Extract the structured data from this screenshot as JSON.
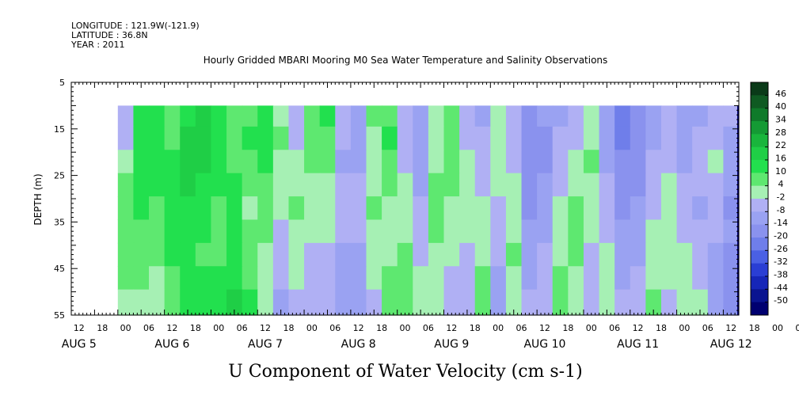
{
  "header": {
    "longitude": "LONGITUDE : 121.9W(-121.9)",
    "latitude": "LATITUDE : 36.8N",
    "year": "YEAR : 2011",
    "title": "Hourly Gridded MBARI Mooring M0 Sea Water Temperature and Salinity Observations"
  },
  "chart_data": {
    "type": "heatmap",
    "title": "Hourly Gridded MBARI Mooring M0 Sea Water Temperature and Salinity Observations",
    "xlabel": "U Component of Water Velocity (cm s-1)",
    "ylabel": "DEPTH (m)",
    "ylim": [
      55,
      5
    ],
    "y_ticks": [
      "5",
      "15",
      "25",
      "35",
      "45",
      "55"
    ],
    "x_hour_ticks": [
      "12",
      "18",
      "00",
      "06",
      "12",
      "18",
      "00",
      "06",
      "12",
      "18",
      "00",
      "06",
      "12",
      "18",
      "00",
      "06",
      "12",
      "18",
      "00",
      "06",
      "12",
      "18",
      "00",
      "06",
      "12",
      "18",
      "00",
      "06",
      "12",
      "18",
      "00",
      "06"
    ],
    "x_day_labels": [
      "AUG 5",
      "AUG 6",
      "AUG 7",
      "AUG 8",
      "AUG 9",
      "AUG 10",
      "AUG 11",
      "AUG 12"
    ],
    "x_range_hours": [
      0,
      172
    ],
    "data_depth_range": [
      10,
      55
    ],
    "colorbar": {
      "levels": [
        "46",
        "40",
        "34",
        "28",
        "22",
        "16",
        "10",
        "4",
        "-2",
        "-8",
        "-14",
        "-20",
        "-26",
        "-32",
        "-38",
        "-44",
        "-50"
      ]
    },
    "column_times_hours": [
      14,
      18,
      22,
      26,
      30,
      34,
      38,
      42,
      46,
      50,
      54,
      58,
      62,
      66,
      70,
      74,
      78,
      82,
      86,
      90,
      94,
      98,
      102,
      106,
      110,
      114,
      118,
      122,
      126,
      130,
      134,
      138,
      142,
      146,
      150,
      154,
      158,
      162,
      166,
      170
    ],
    "row_depths_m": [
      12,
      17,
      22,
      27,
      32,
      37,
      42,
      47,
      52
    ],
    "values_cm_s": [
      [
        -3,
        12,
        15,
        8,
        16,
        18,
        14,
        6,
        10,
        15,
        4,
        -4,
        8,
        12,
        -5,
        -8,
        6,
        10,
        -6,
        -10,
        4,
        8,
        -4,
        -8,
        2,
        -6,
        -14,
        -12,
        -8,
        -4,
        2,
        -10,
        -20,
        -16,
        -10,
        -6,
        -12,
        -8,
        -4,
        -6
      ],
      [
        -2,
        14,
        16,
        10,
        18,
        20,
        16,
        8,
        12,
        14,
        6,
        -2,
        10,
        8,
        -6,
        -10,
        4,
        12,
        -4,
        -12,
        2,
        10,
        -2,
        -6,
        4,
        -4,
        -16,
        -14,
        -6,
        -2,
        4,
        -12,
        -22,
        -18,
        -8,
        -4,
        -10,
        -6,
        -2,
        -8
      ],
      [
        4,
        16,
        14,
        12,
        20,
        18,
        14,
        10,
        8,
        12,
        4,
        2,
        6,
        6,
        -8,
        -8,
        2,
        8,
        -2,
        -10,
        4,
        8,
        2,
        -4,
        2,
        -2,
        -18,
        -14,
        -4,
        2,
        6,
        -8,
        -18,
        -16,
        -6,
        -2,
        -8,
        -4,
        0,
        -10
      ],
      [
        6,
        14,
        12,
        14,
        18,
        16,
        12,
        12,
        6,
        10,
        2,
        4,
        4,
        4,
        -6,
        -6,
        4,
        6,
        0,
        -8,
        6,
        6,
        4,
        -2,
        0,
        0,
        -16,
        -12,
        -2,
        4,
        4,
        -6,
        -16,
        -14,
        -4,
        0,
        -6,
        -6,
        -2,
        -12
      ],
      [
        8,
        12,
        10,
        16,
        16,
        14,
        10,
        14,
        4,
        8,
        0,
        6,
        2,
        2,
        -4,
        -4,
        6,
        4,
        2,
        -6,
        8,
        4,
        2,
        0,
        -2,
        2,
        -14,
        -10,
        0,
        6,
        2,
        -4,
        -14,
        -12,
        -2,
        2,
        -4,
        -8,
        -4,
        -14
      ],
      [
        10,
        10,
        8,
        14,
        14,
        12,
        8,
        12,
        6,
        6,
        -2,
        4,
        0,
        0,
        -6,
        -6,
        4,
        2,
        4,
        -4,
        6,
        2,
        0,
        2,
        -4,
        4,
        -12,
        -8,
        2,
        8,
        0,
        -2,
        -12,
        -10,
        0,
        4,
        -2,
        -6,
        -6,
        -12
      ],
      [
        8,
        8,
        6,
        12,
        12,
        10,
        10,
        14,
        8,
        4,
        -4,
        2,
        -2,
        -2,
        -8,
        -8,
        2,
        4,
        6,
        -2,
        4,
        0,
        -2,
        4,
        -6,
        6,
        -10,
        -6,
        4,
        6,
        -2,
        0,
        -10,
        -8,
        2,
        2,
        0,
        -4,
        -8,
        -14
      ],
      [
        6,
        6,
        4,
        10,
        14,
        12,
        12,
        16,
        10,
        2,
        -6,
        0,
        -4,
        -4,
        -10,
        -10,
        0,
        6,
        8,
        0,
        2,
        -2,
        -4,
        6,
        -8,
        4,
        -8,
        -4,
        6,
        4,
        -4,
        2,
        -8,
        -6,
        4,
        0,
        2,
        -2,
        -10,
        -16
      ],
      [
        4,
        4,
        2,
        8,
        12,
        14,
        14,
        18,
        12,
        0,
        -8,
        -2,
        -6,
        -6,
        -12,
        -12,
        -2,
        8,
        10,
        2,
        0,
        -4,
        -6,
        8,
        -10,
        2,
        -6,
        -2,
        8,
        2,
        -6,
        4,
        -6,
        -4,
        6,
        -2,
        4,
        0,
        -12,
        -18
      ]
    ]
  },
  "colors": {
    "palette": [
      "#0a3a18",
      "#0f5a22",
      "#0f7a2a",
      "#149a34",
      "#19b53c",
      "#1fce46",
      "#22e04e",
      "#5ee870",
      "#a6f0b4",
      "#b0b0f4",
      "#9aa2f2",
      "#8a92ee",
      "#6f7eea",
      "#4a60e4",
      "#2a3ed4",
      "#1626b8",
      "#0a1490",
      "#000070"
    ]
  }
}
